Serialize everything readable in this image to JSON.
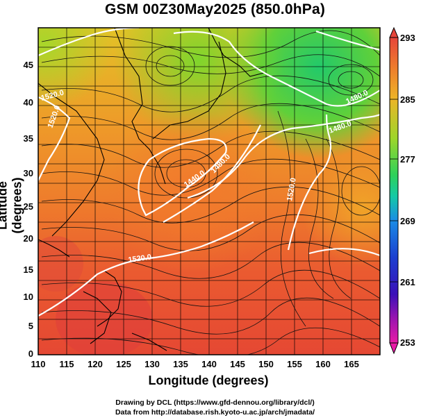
{
  "title": "GSM 00Z30May2025 (850.0hPa)",
  "axes": {
    "xlabel": "Longitude (degrees)",
    "ylabel": "Latitude  (degrees)",
    "xticks": [
      "110",
      "115",
      "120",
      "125",
      "130",
      "135",
      "140",
      "145",
      "150",
      "155",
      "160",
      "165"
    ],
    "yticks": [
      "45",
      "40",
      "35",
      "30",
      "25",
      "20",
      "15",
      "10",
      "5",
      "0"
    ]
  },
  "colorbar": {
    "ticks": [
      "293",
      "285",
      "277",
      "269",
      "261",
      "253"
    ],
    "colors": [
      "#e7453a",
      "#ee8a2a",
      "#e7c824",
      "#6fd52a",
      "#17c98a",
      "#1a7ee6",
      "#1f23c0",
      "#8a12b0",
      "#e81aa6"
    ]
  },
  "contour_labels": [
    "1440.0",
    "1480.0",
    "1480.0",
    "1520.0",
    "1520.0",
    "1520.0",
    "1520.0",
    "1480.0"
  ],
  "credits": {
    "line1": "Drawing by DCL (https://www.gfd-dennou.org/library/dcl/)",
    "line2": "Data from http://database.rish.kyoto-u.ac.jp/arch/jmadata/"
  }
}
